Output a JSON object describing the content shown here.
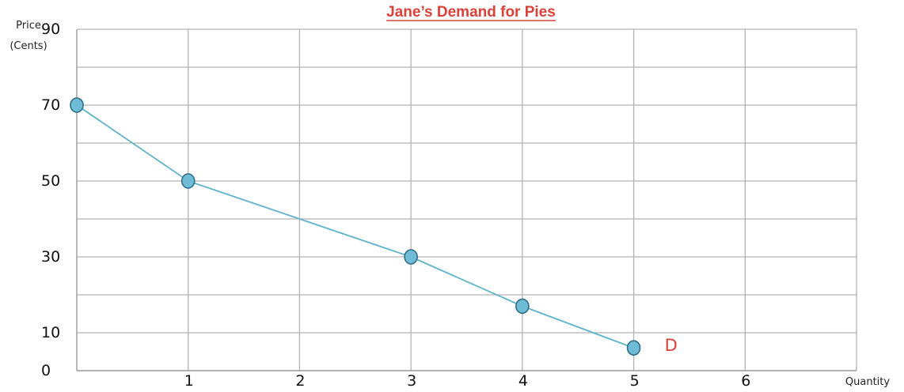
{
  "chart_data": {
    "type": "line",
    "title": "Jane’s Demand for Pies",
    "xlabel": "Quantity",
    "ylabel_lines": [
      "Price",
      "(Cents)"
    ],
    "xlim": [
      0,
      7
    ],
    "ylim": [
      0,
      90
    ],
    "x_ticks": [
      1,
      2,
      3,
      4,
      5,
      6
    ],
    "y_ticks": [
      90,
      70,
      50,
      30,
      10,
      0
    ],
    "y_tick_labels": [
      "90",
      "70",
      "50",
      "30",
      "10",
      "0"
    ],
    "x_grid": [
      1,
      2,
      3,
      4,
      5,
      6,
      7
    ],
    "y_grid": [
      10,
      20,
      30,
      40,
      50,
      60,
      70,
      80,
      90
    ],
    "grid": true,
    "series": [
      {
        "name": "D",
        "x": [
          0,
          1,
          3,
          4,
          5
        ],
        "y": [
          70,
          50,
          30,
          17,
          6
        ],
        "color": "#5fb3c9",
        "marker_fill": "#6fbcd6",
        "marker_stroke": "#2e6f86"
      }
    ]
  }
}
